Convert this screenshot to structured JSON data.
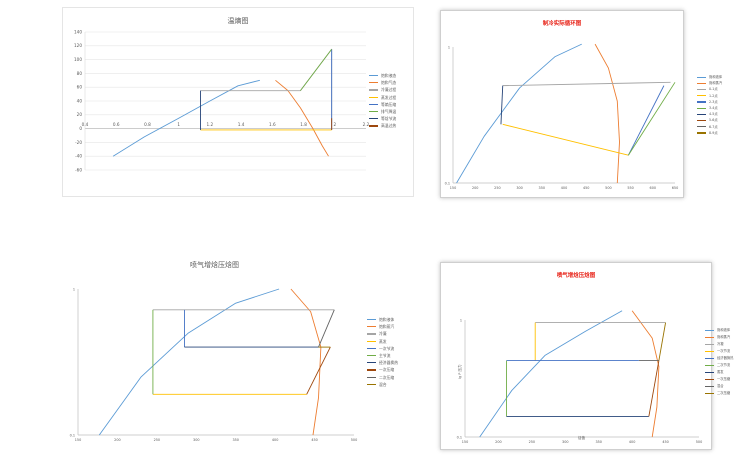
{
  "chart_data": [
    {
      "type": "line",
      "title": "温熵图",
      "xlim": [
        0.4,
        2.2
      ],
      "ylim": [
        -60,
        140
      ],
      "xticks": [
        0.4,
        0.6,
        0.8,
        1,
        1.2,
        1.4,
        1.6,
        1.8,
        2,
        2.2
      ],
      "xtick_labels": [
        "0.4",
        "0.6",
        "0.8",
        "1",
        "1.2",
        "1.4",
        "1.6",
        "1.8",
        "2",
        "2.2"
      ],
      "yticks": [
        -60,
        -40,
        -20,
        0,
        20,
        40,
        60,
        80,
        100,
        120,
        140
      ],
      "ytick_labels": [
        "-60",
        "-40",
        "-20",
        "0",
        "20",
        "40",
        "60",
        "80",
        "100",
        "120",
        "140"
      ],
      "grid": "horizontal",
      "legend_position": "right",
      "series": [
        {
          "name": "饱和液态",
          "color": "#5b9bd5",
          "x": [
            0.58,
            0.78,
            1.0,
            1.2,
            1.38,
            1.52
          ],
          "y": [
            -40,
            -12,
            15,
            40,
            62,
            70
          ]
        },
        {
          "name": "饱和气态",
          "color": "#ed7d31",
          "x": [
            1.62,
            1.7,
            1.78,
            1.86,
            1.92,
            1.96
          ],
          "y": [
            70,
            55,
            30,
            0,
            -25,
            -40
          ]
        },
        {
          "name": "冷凝过程",
          "color": "#a5a5a5",
          "x": [
            1.14,
            1.78,
            1.98,
            1.98
          ],
          "y": [
            55,
            55,
            115,
            -2
          ]
        },
        {
          "name": "蒸发过程",
          "color": "#ffc000",
          "x": [
            1.14,
            1.98
          ],
          "y": [
            -2,
            -2
          ]
        },
        {
          "name": "等熵压缩",
          "color": "#4472c4",
          "x": [
            1.98,
            1.98
          ],
          "y": [
            -2,
            115
          ]
        },
        {
          "name": "排气降温",
          "color": "#70ad47",
          "x": [
            1.78,
            1.98
          ],
          "y": [
            55,
            115
          ]
        },
        {
          "name": "等焓节流",
          "color": "#264478",
          "x": [
            1.14,
            1.14
          ],
          "y": [
            55,
            -2
          ]
        },
        {
          "name": "高温过热",
          "color": "#9e480e",
          "x": [
            1.98,
            1.98
          ],
          "y": [
            -2,
            15
          ]
        }
      ]
    },
    {
      "type": "line",
      "title": "制冷实际循环图",
      "xlim": [
        150,
        650
      ],
      "ylim_log": [
        0.1,
        1
      ],
      "xticks": [
        150,
        200,
        250,
        300,
        350,
        400,
        450,
        500,
        550,
        600,
        650
      ],
      "xtick_labels": [
        "150",
        "200",
        "250",
        "300",
        "350",
        "400",
        "450",
        "500",
        "550",
        "600",
        "650"
      ],
      "yticks": [
        0.1,
        1
      ],
      "ytick_labels": [
        "0.1",
        "1"
      ],
      "legend_position": "right",
      "series": [
        {
          "name": "饱和液体",
          "color": "#5b9bd5",
          "x": [
            158,
            220,
            300,
            380,
            440
          ],
          "y": [
            0.1,
            0.22,
            0.5,
            0.85,
            1.05
          ]
        },
        {
          "name": "饱和蒸汽",
          "color": "#ed7d31",
          "x": [
            470,
            500,
            520,
            525,
            520
          ],
          "y": [
            1.05,
            0.7,
            0.4,
            0.2,
            0.1
          ]
        },
        {
          "name": "0-1点",
          "color": "#a5a5a5",
          "x": [
            262,
            640
          ],
          "y": [
            0.52,
            0.55
          ]
        },
        {
          "name": "1-2点",
          "color": "#ffc000",
          "x": [
            262,
            545
          ],
          "y": [
            0.27,
            0.16
          ]
        },
        {
          "name": "2-3点",
          "color": "#4472c4",
          "x": [
            545,
            625
          ],
          "y": [
            0.16,
            0.52
          ]
        },
        {
          "name": "3-4点",
          "color": "#70ad47",
          "x": [
            545,
            650
          ],
          "y": [
            0.16,
            0.55
          ]
        },
        {
          "name": "4-5点",
          "color": "#264478",
          "x": [
            258,
            262
          ],
          "y": [
            0.27,
            0.52
          ]
        },
        {
          "name": "5-6点",
          "color": "#9e480e",
          "x": [],
          "y": []
        },
        {
          "name": "6-7点",
          "color": "#636363",
          "x": [],
          "y": []
        },
        {
          "name": "8-9点",
          "color": "#997300",
          "x": [],
          "y": []
        }
      ]
    },
    {
      "type": "line",
      "title": "喷气增焓压焓图",
      "xlim": [
        150,
        500
      ],
      "ylim_log": [
        0.1,
        1
      ],
      "xticks": [
        150,
        200,
        250,
        300,
        350,
        400,
        450,
        500
      ],
      "xtick_labels": [
        "150",
        "200",
        "250",
        "300",
        "350",
        "400",
        "450",
        "500"
      ],
      "yticks": [
        0.1,
        1
      ],
      "ytick_labels": [
        "0.1",
        "1"
      ],
      "legend_position": "right",
      "series": [
        {
          "name": "饱和液体",
          "color": "#5b9bd5",
          "x": [
            177,
            230,
            290,
            350,
            405
          ],
          "y": [
            0.1,
            0.25,
            0.5,
            0.8,
            1.0
          ]
        },
        {
          "name": "饱和蒸汽",
          "color": "#ed7d31",
          "x": [
            420,
            445,
            458,
            455,
            448
          ],
          "y": [
            1.0,
            0.7,
            0.4,
            0.18,
            0.1
          ]
        },
        {
          "name": "冷凝",
          "color": "#a5a5a5",
          "x": [
            245,
            475
          ],
          "y": [
            0.72,
            0.72
          ]
        },
        {
          "name": "蒸发",
          "color": "#ffc000",
          "x": [
            245,
            440
          ],
          "y": [
            0.19,
            0.19
          ]
        },
        {
          "name": "一次节流",
          "color": "#4472c4",
          "x": [
            285,
            285
          ],
          "y": [
            0.72,
            0.4
          ]
        },
        {
          "name": "主节流",
          "color": "#70ad47",
          "x": [
            245,
            245
          ],
          "y": [
            0.72,
            0.19
          ]
        },
        {
          "name": "经济器换热",
          "color": "#264478",
          "x": [
            285,
            455
          ],
          "y": [
            0.4,
            0.4
          ]
        },
        {
          "name": "一次压缩",
          "color": "#9e480e",
          "x": [
            440,
            470
          ],
          "y": [
            0.19,
            0.4
          ]
        },
        {
          "name": "二次压缩",
          "color": "#636363",
          "x": [
            455,
            475
          ],
          "y": [
            0.4,
            0.72
          ]
        },
        {
          "name": "混合",
          "color": "#997300",
          "x": [
            455,
            470
          ],
          "y": [
            0.4,
            0.4
          ]
        }
      ]
    },
    {
      "type": "line",
      "title": "喷气增焓压焓图",
      "xlabel": "焓值",
      "ylabel": "lg P 压力",
      "xlim": [
        150,
        500
      ],
      "ylim_log": [
        0.1,
        1
      ],
      "xticks": [
        150,
        200,
        250,
        300,
        350,
        400,
        450,
        500
      ],
      "xtick_labels": [
        "150",
        "200",
        "250",
        "300",
        "350",
        "400",
        "450",
        "500"
      ],
      "yticks": [
        0.1,
        1
      ],
      "ytick_labels": [
        "0.1",
        "1"
      ],
      "legend_position": "right",
      "series": [
        {
          "name": "饱和液体",
          "color": "#5b9bd5",
          "x": [
            172,
            220,
            270,
            330,
            385
          ],
          "y": [
            0.1,
            0.25,
            0.5,
            0.8,
            1.2
          ]
        },
        {
          "name": "饱和蒸汽",
          "color": "#ed7d31",
          "x": [
            400,
            430,
            440,
            437,
            430
          ],
          "y": [
            1.2,
            0.7,
            0.4,
            0.18,
            0.1
          ]
        },
        {
          "name": "冷凝",
          "color": "#a5a5a5",
          "x": [
            255,
            450
          ],
          "y": [
            0.95,
            0.95
          ]
        },
        {
          "name": "一次节流",
          "color": "#ffc000",
          "x": [
            255,
            255
          ],
          "y": [
            0.95,
            0.45
          ]
        },
        {
          "name": "经济器换热",
          "color": "#4472c4",
          "x": [
            212,
            410
          ],
          "y": [
            0.45,
            0.45
          ]
        },
        {
          "name": "二次节流",
          "color": "#70ad47",
          "x": [
            212,
            212
          ],
          "y": [
            0.45,
            0.15
          ]
        },
        {
          "name": "蒸发",
          "color": "#264478",
          "x": [
            212,
            425
          ],
          "y": [
            0.15,
            0.15
          ]
        },
        {
          "name": "一次压缩",
          "color": "#9e480e",
          "x": [
            425,
            440
          ],
          "y": [
            0.15,
            0.45
          ]
        },
        {
          "name": "混合",
          "color": "#636363",
          "x": [
            410,
            440
          ],
          "y": [
            0.45,
            0.45
          ]
        },
        {
          "name": "二次压缩",
          "color": "#997300",
          "x": [
            440,
            450
          ],
          "y": [
            0.45,
            0.95
          ]
        }
      ]
    }
  ]
}
